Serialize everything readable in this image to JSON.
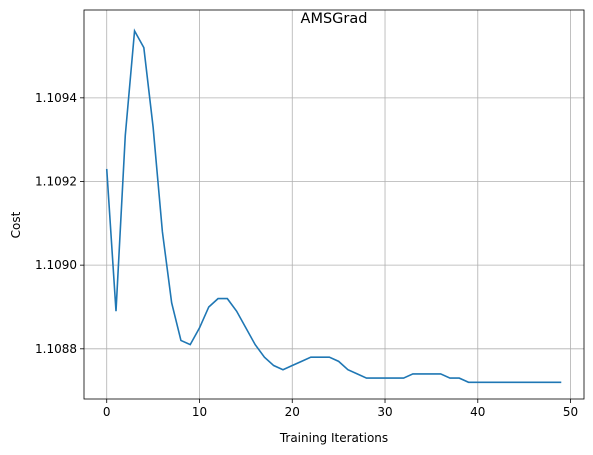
{
  "chart_data": {
    "type": "line",
    "title": "AMSGrad",
    "xlabel": "Training Iterations",
    "ylabel": "Cost",
    "xlim": [
      -2.45,
      51.45
    ],
    "ylim": [
      1.10868,
      1.10961
    ],
    "xticks": [
      0,
      10,
      20,
      30,
      40,
      50
    ],
    "yticks": [
      1.1088,
      1.109,
      1.1092,
      1.1094
    ],
    "ytick_labels": [
      "1.1088",
      "1.1090",
      "1.1092",
      "1.1094"
    ],
    "grid": true,
    "colors": {
      "line": "#1f77b4",
      "grid": "#b0b0b0",
      "axis": "#000000"
    },
    "series": [
      {
        "x": [
          0,
          1,
          2,
          3,
          4,
          5,
          6,
          7,
          8,
          9,
          10,
          11,
          12,
          13,
          14,
          15,
          16,
          17,
          18,
          19,
          20,
          21,
          22,
          23,
          24,
          25,
          26,
          27,
          28,
          29,
          30,
          31,
          32,
          33,
          34,
          35,
          36,
          37,
          38,
          39,
          40,
          41,
          42,
          43,
          44,
          45,
          46,
          47,
          48,
          49
        ],
        "values": [
          1.10923,
          1.10889,
          1.10931,
          1.10956,
          1.10952,
          1.10933,
          1.10908,
          1.10891,
          1.10882,
          1.10881,
          1.10885,
          1.1089,
          1.10892,
          1.10892,
          1.10889,
          1.10885,
          1.10881,
          1.10878,
          1.10876,
          1.10875,
          1.10876,
          1.10877,
          1.10878,
          1.10878,
          1.10878,
          1.10877,
          1.10875,
          1.10874,
          1.10873,
          1.10873,
          1.10873,
          1.10873,
          1.10873,
          1.10874,
          1.10874,
          1.10874,
          1.10874,
          1.10873,
          1.10873,
          1.10872,
          1.10872,
          1.10872,
          1.10872,
          1.10872,
          1.10872,
          1.10872,
          1.10872,
          1.10872,
          1.10872,
          1.10872
        ]
      }
    ]
  }
}
